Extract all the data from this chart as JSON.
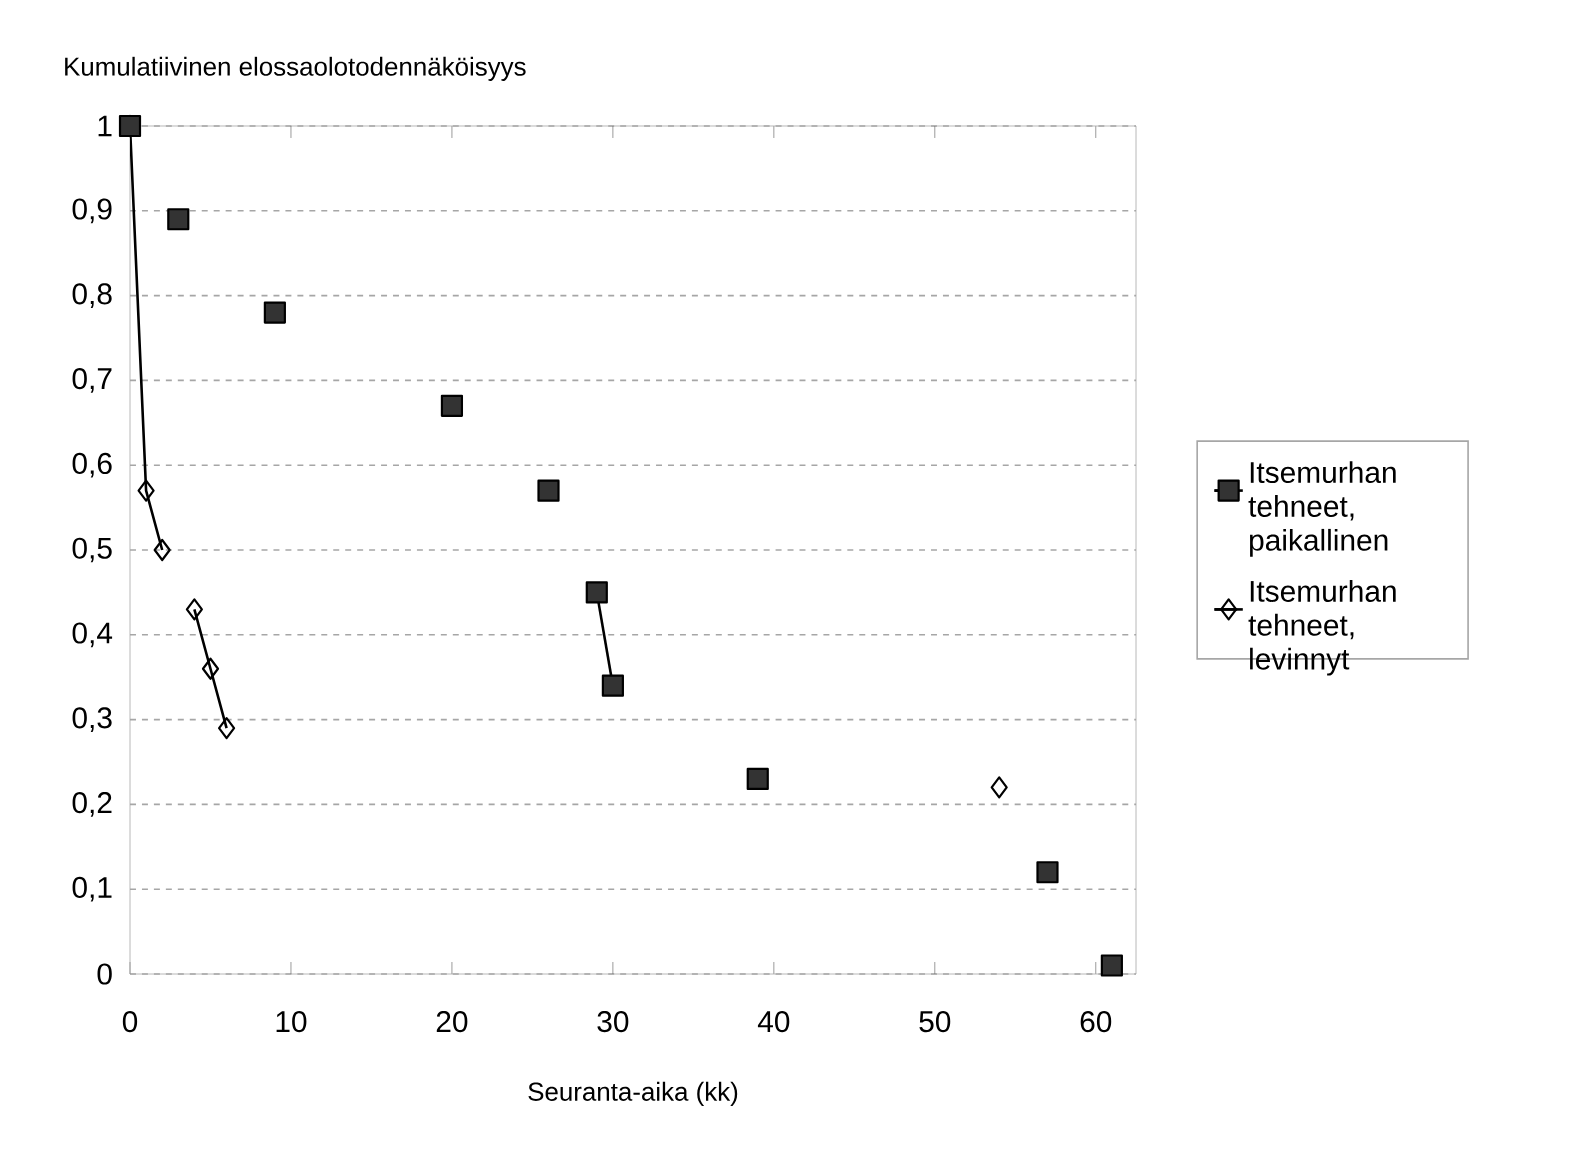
{
  "chart_data": {
    "type": "line",
    "ylabel": "Kumulatiivinen elossaolotodennäköisyys",
    "xlabel": "Seuranta-aika (kk)",
    "xlim": [
      0,
      62.5
    ],
    "xticks": [
      0,
      10,
      20,
      30,
      40,
      50,
      60
    ],
    "ylim": [
      0,
      1
    ],
    "yticks": [
      {
        "value": 0,
        "label": "0"
      },
      {
        "value": 0.1,
        "label": "0,1"
      },
      {
        "value": 0.2,
        "label": "0,2"
      },
      {
        "value": 0.3,
        "label": "0,3"
      },
      {
        "value": 0.4,
        "label": "0,4"
      },
      {
        "value": 0.5,
        "label": "0,5"
      },
      {
        "value": 0.6,
        "label": "0,6"
      },
      {
        "value": 0.7,
        "label": "0,7"
      },
      {
        "value": 0.8,
        "label": "0,8"
      },
      {
        "value": 0.9,
        "label": "0,9"
      },
      {
        "value": 1,
        "label": "1"
      }
    ],
    "grid": "y",
    "legend": "right",
    "series": [
      {
        "name": "Itsemurhan tehneet, paikallinen",
        "color": "#333333",
        "marker": "square",
        "x": [
          29,
          30
        ],
        "values": [
          0.45,
          0.34
        ]
      },
      {
        "name": "Itsemurhan tehneet, levinnyt",
        "color": "#000000",
        "marker": "diamond",
        "x": [
          0,
          1,
          2
        ],
        "values": [
          1,
          0.57,
          0.5
        ]
      },
      {
        "type": "line",
        "color": "#000000",
        "marker": "diamond",
        "x": [
          4,
          5,
          6
        ],
        "values": [
          0.43,
          0.36,
          0.29
        ]
      },
      {
        "type": "scatter",
        "color": "#000000",
        "marker": "diamond",
        "x": [
          54
        ],
        "values": [
          0.22
        ]
      },
      {
        "type": "scatter",
        "color": "#333333",
        "marker": "square",
        "x": [
          0,
          3,
          9,
          20,
          26,
          39,
          57,
          61
        ],
        "values": [
          1,
          0.89,
          0.78,
          0.67,
          0.57,
          0.23,
          0.12,
          0.01
        ]
      }
    ]
  }
}
